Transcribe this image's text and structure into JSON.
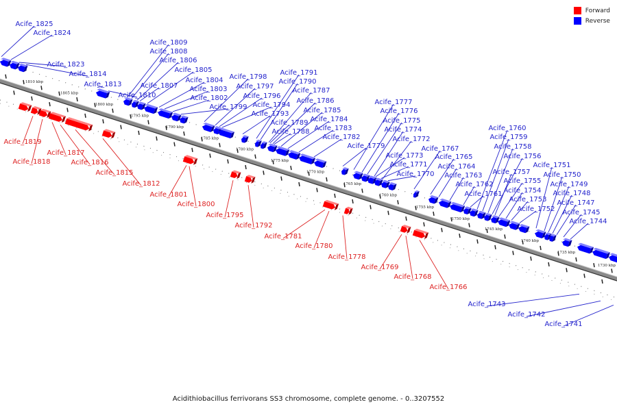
{
  "legend": {
    "forward": "Forward",
    "reverse": "Reverse"
  },
  "colors": {
    "forward": "#ff0000",
    "reverse": "#0000ff",
    "backbone": "#8a8a8a"
  },
  "caption": "Acidithiobacillus ferrivorans SS3 chromosome, complete genome. - 0..3207552",
  "scale_labels": [
    "1810 kbp",
    "1805 kbp",
    "1800 kbp",
    "1795 kbp",
    "1790 kbp",
    "1785 kbp",
    "1780 kbp",
    "1775 kbp",
    "1770 kbp",
    "1765 kbp",
    "1760 kbp",
    "1755 kbp",
    "1750 kbp",
    "1745 kbp",
    "1740 kbp",
    "1735 kbp",
    "1730 kbp"
  ],
  "reverse_labels": [
    "Acife_1825",
    "Acife_1824",
    "Acife_1823",
    "Acife_1814",
    "Acife_1813",
    "Acife_1810",
    "Acife_1809",
    "Acife_1808",
    "Acife_1806",
    "Acife_1807",
    "Acife_1805",
    "Acife_1804",
    "Acife_1803",
    "Acife_1802",
    "Acife_1799",
    "Acife_1798",
    "Acife_1797",
    "Acife_1796",
    "Acife_1794",
    "Acife_1793",
    "Acife_1791",
    "Acife_1790",
    "Acife_1787",
    "Acife_1786",
    "Acife_1785",
    "Acife_1784",
    "Acife_1789",
    "Acife_1788",
    "Acife_1783",
    "Acife_1782",
    "Acife_1779",
    "Acife_1777",
    "Acife_1776",
    "Acife_1775",
    "Acife_1774",
    "Acife_1772",
    "Acife_1773",
    "Acife_1771",
    "Acife_1770",
    "Acife_1767",
    "Acife_1765",
    "Acife_1764",
    "Acife_1763",
    "Acife_1762",
    "Acife_1761",
    "Acife_1760",
    "Acife_1759",
    "Acife_1758",
    "Acife_1756",
    "Acife_1757",
    "Acife_1755",
    "Acife_1754",
    "Acife_1753",
    "Acife_1752",
    "Acife_1751",
    "Acife_1750",
    "Acife_1749",
    "Acife_1748",
    "Acife_1747",
    "Acife_1745",
    "Acife_1744",
    "Acife_1743",
    "Acife_1742",
    "Acife_1741"
  ],
  "forward_labels": [
    "Acife_1819",
    "Acife_1818",
    "Acife_1817",
    "Acife_1816",
    "Acife_1815",
    "Acife_1812",
    "Acife_1801",
    "Acife_1800",
    "Acife_1795",
    "Acife_1792",
    "Acife_1781",
    "Acife_1780",
    "Acife_1778",
    "Acife_1769",
    "Acife_1768",
    "Acife_1766"
  ]
}
